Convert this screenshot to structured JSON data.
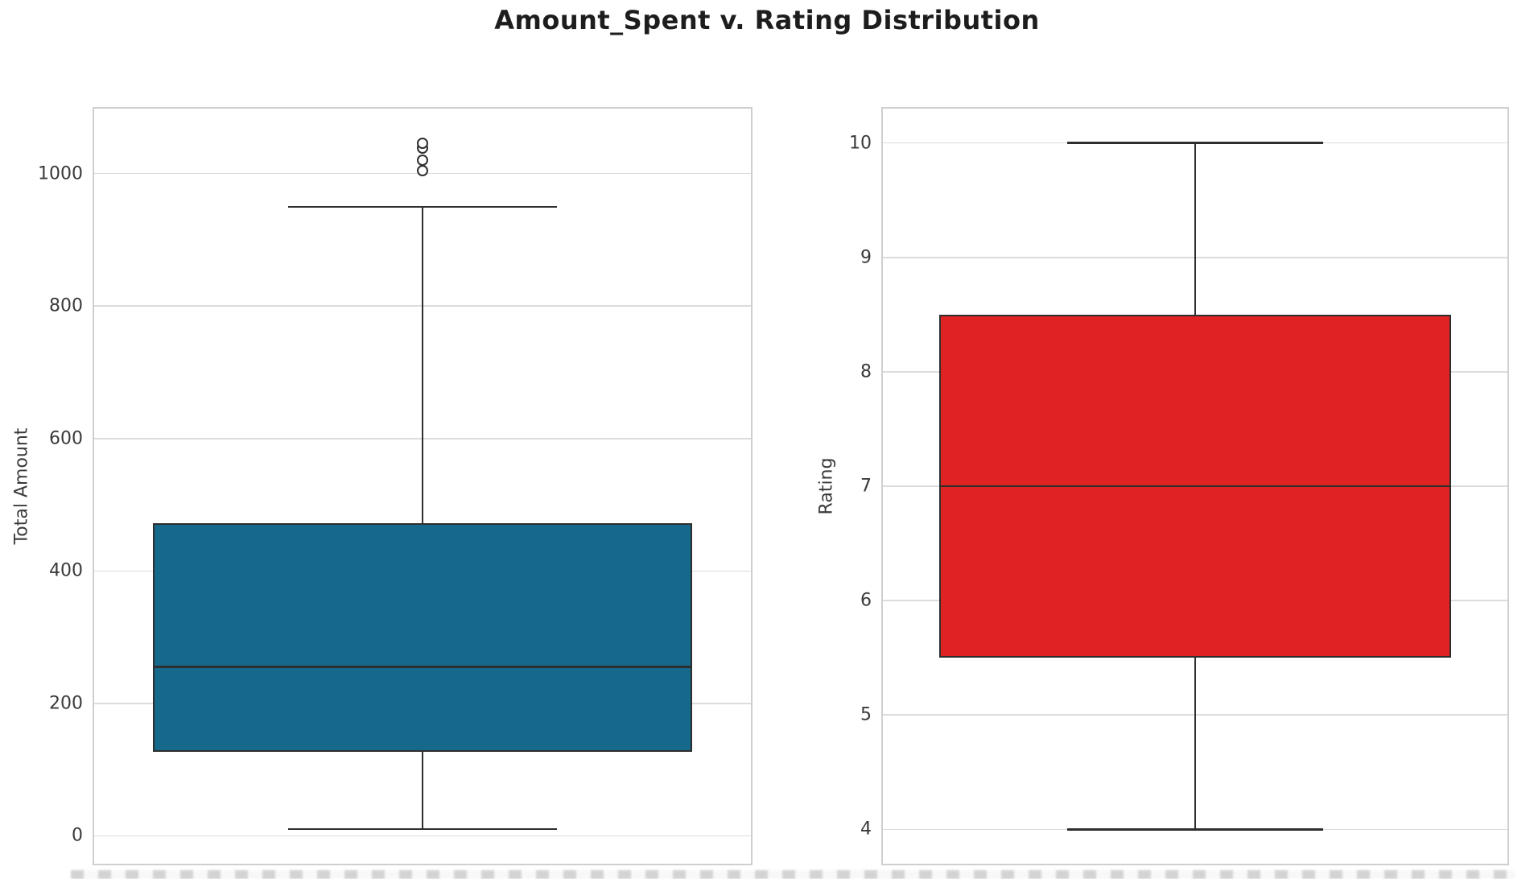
{
  "title": "Amount_Spent v. Rating Distribution",
  "colors": {
    "grid": "#dcdcdc",
    "spine": "#cdd0d3",
    "line": "#2e2e2e",
    "text": "#3a3a3a",
    "title_text": "#1d1d1d",
    "box_blue": "#17698c",
    "box_red": "#de2322"
  },
  "chart_data": [
    {
      "type": "box",
      "name": "Amount_Spent",
      "ylabel": "Total Amount",
      "yticks": [
        0,
        200,
        400,
        600,
        800,
        1000
      ],
      "ylim": [
        -42,
        1098
      ],
      "grid": true,
      "box_color": "#17698c",
      "stats": {
        "whisker_low": 10,
        "q1": 127,
        "median": 255,
        "q3": 472,
        "whisker_high": 950,
        "outliers": [
          1005,
          1020,
          1038,
          1046
        ]
      }
    },
    {
      "type": "box",
      "name": "Rating",
      "ylabel": "Rating",
      "yticks": [
        4,
        5,
        6,
        7,
        8,
        9,
        10
      ],
      "ylim": [
        3.7,
        10.3
      ],
      "grid": true,
      "box_color": "#de2322",
      "stats": {
        "whisker_low": 4,
        "q1": 5.5,
        "median": 7,
        "q3": 8.5,
        "whisker_high": 10,
        "outliers": []
      }
    }
  ]
}
